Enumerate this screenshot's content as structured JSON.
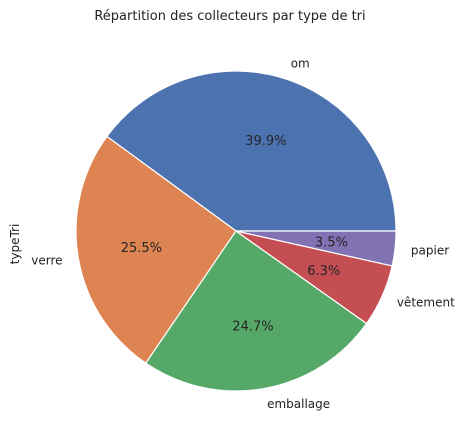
{
  "chart_data": {
    "type": "pie",
    "title": "Répartition des collecteurs par type de tri",
    "ylabel": "typeTri",
    "slices": [
      {
        "label": "om",
        "value": 39.9,
        "pct_label": "39.9%",
        "color": "#4c72b0"
      },
      {
        "label": "verre",
        "value": 25.5,
        "pct_label": "25.5%",
        "color": "#dd8452"
      },
      {
        "label": "emballage",
        "value": 24.7,
        "pct_label": "24.7%",
        "color": "#55a868"
      },
      {
        "label": "vêtement",
        "value": 6.3,
        "pct_label": "6.3%",
        "color": "#c44e52"
      },
      {
        "label": "papier",
        "value": 3.5,
        "pct_label": "3.5%",
        "color": "#8172b3"
      }
    ],
    "start_angle_deg": 0,
    "direction": "counterclockwise"
  }
}
